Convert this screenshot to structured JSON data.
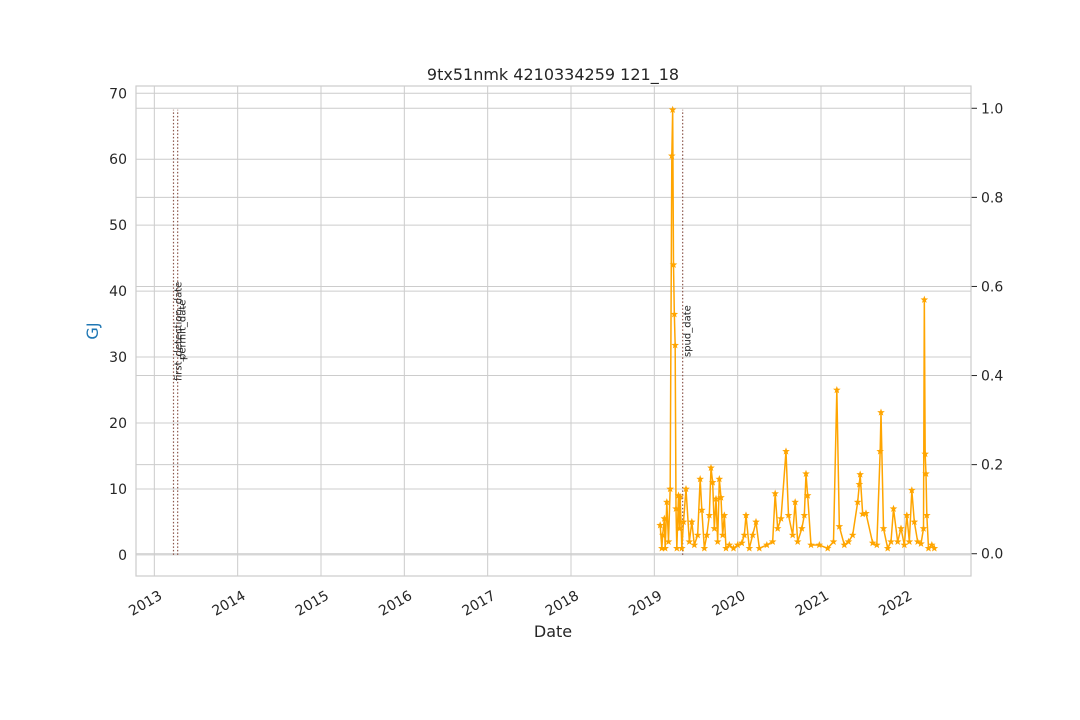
{
  "chart_data": {
    "type": "line",
    "title": "9tx51nmk 4210334259 121_18",
    "xlabel": "Date",
    "ylabel": "GJ",
    "ylabel_color": "#1f77b4",
    "color": "#ffa500",
    "marker": "star",
    "grid": true,
    "xlim": [
      2012.78,
      2022.8
    ],
    "xticks": [
      2013,
      2014,
      2015,
      2016,
      2017,
      2018,
      2019,
      2020,
      2021,
      2022
    ],
    "ylim": [
      -3.2,
      71.1
    ],
    "yticks": [
      0,
      10,
      20,
      30,
      40,
      50,
      60,
      70
    ],
    "y2lim": [
      -0.05,
      1.05
    ],
    "y2ticks": [
      {
        "value": 0,
        "label": "0.0"
      },
      {
        "value": 0.2,
        "label": "0.2"
      },
      {
        "value": 0.4,
        "label": "0.4"
      },
      {
        "value": 0.6,
        "label": "0.6"
      },
      {
        "value": 0.8,
        "label": "0.8"
      },
      {
        "value": 1,
        "label": "1.0"
      }
    ],
    "vlines": [
      {
        "label": "first_detection_date",
        "x": 2013.23,
        "color": "#8c564b"
      },
      {
        "label": "permit_date",
        "x": 2013.28,
        "color": "#8c564b"
      },
      {
        "label": "spud_date",
        "x": 2019.34,
        "color": "#8c564b"
      }
    ],
    "x": [
      2019.07,
      2019.09,
      2019.1,
      2019.12,
      2019.13,
      2019.15,
      2019.17,
      2019.19,
      2019.21,
      2019.22,
      2019.23,
      2019.24,
      2019.25,
      2019.26,
      2019.27,
      2019.29,
      2019.3,
      2019.31,
      2019.33,
      2019.35,
      2019.38,
      2019.42,
      2019.45,
      2019.48,
      2019.52,
      2019.55,
      2019.57,
      2019.6,
      2019.63,
      2019.66,
      2019.68,
      2019.7,
      2019.72,
      2019.74,
      2019.76,
      2019.78,
      2019.8,
      2019.82,
      2019.84,
      2019.86,
      2019.9,
      2019.95,
      2020.0,
      2020.05,
      2020.08,
      2020.1,
      2020.14,
      2020.18,
      2020.22,
      2020.26,
      2020.35,
      2020.42,
      2020.45,
      2020.48,
      2020.52,
      2020.58,
      2020.61,
      2020.66,
      2020.69,
      2020.72,
      2020.77,
      2020.8,
      2020.82,
      2020.84,
      2020.88,
      2020.98,
      2021.08,
      2021.15,
      2021.19,
      2021.22,
      2021.28,
      2021.33,
      2021.38,
      2021.44,
      2021.46,
      2021.47,
      2021.5,
      2021.54,
      2021.62,
      2021.67,
      2021.71,
      2021.72,
      2021.75,
      2021.8,
      2021.84,
      2021.87,
      2021.92,
      2021.96,
      2022.0,
      2022.03,
      2022.06,
      2022.09,
      2022.12,
      2022.16,
      2022.2,
      2022.23,
      2022.24,
      2022.25,
      2022.26,
      2022.27,
      2022.29,
      2022.33,
      2022.36
    ],
    "values": [
      4.5,
      1,
      3,
      5.5,
      1,
      8,
      2,
      10,
      60.5,
      67.5,
      44,
      36.5,
      31.8,
      7,
      1,
      9,
      4,
      8.8,
      1,
      5,
      10,
      2,
      5,
      1.5,
      3,
      11.5,
      6.8,
      1,
      3,
      6,
      13.2,
      11,
      4,
      8.5,
      2,
      11.5,
      8.7,
      3,
      6,
      1,
      1.5,
      1,
      1.5,
      1.8,
      3,
      6,
      1,
      3,
      5,
      1,
      1.5,
      2,
      9.3,
      4,
      5.5,
      15.7,
      6,
      3,
      8,
      2,
      4,
      6,
      12.3,
      9,
      1.5,
      1.5,
      1,
      2,
      25,
      4.3,
      1.5,
      2,
      3,
      8,
      10.7,
      12.2,
      6.2,
      6.3,
      1.8,
      1.5,
      15.7,
      21.6,
      4,
      1,
      2,
      7,
      2,
      4,
      1.5,
      6,
      2,
      9.8,
      5,
      2,
      1.7,
      4,
      38.7,
      15.3,
      12.3,
      6,
      1,
      1.5,
      1
    ]
  }
}
